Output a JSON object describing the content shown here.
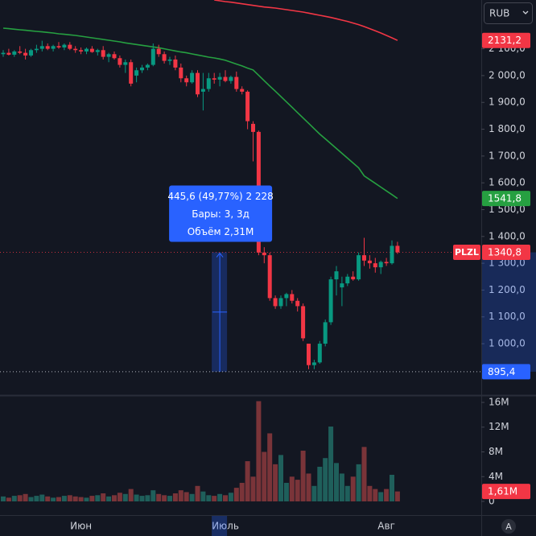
{
  "chart_data": {
    "type": "candlestick",
    "symbol": "PLZL",
    "currency": "RUB",
    "auto_button": "A",
    "categories": [
      null,
      null,
      null,
      null,
      null,
      null,
      null,
      null,
      null,
      null,
      null,
      null,
      null,
      null,
      "Июн",
      null,
      null,
      null,
      null,
      null,
      null,
      null,
      null,
      null,
      null,
      null,
      null,
      null,
      null,
      null,
      null,
      null,
      null,
      null,
      null,
      null,
      null,
      null,
      null,
      null,
      "Июль",
      null,
      null,
      null,
      null,
      null,
      null,
      null,
      null,
      null,
      null,
      null,
      null,
      null,
      null,
      null,
      null,
      null,
      null,
      null,
      null,
      null,
      null,
      null,
      null,
      null,
      null,
      null,
      null,
      "Авг",
      null,
      null
    ],
    "open": [
      2080,
      2085,
      2078,
      2090,
      2085,
      2075,
      2095,
      2100,
      2110,
      2100,
      2110,
      2105,
      2115,
      2100,
      2095,
      2090,
      2100,
      2088,
      2095,
      2070,
      2080,
      2065,
      2040,
      2050,
      2000,
      2020,
      2030,
      2040,
      2100,
      2080,
      2055,
      2060,
      2030,
      1990,
      1975,
      2010,
      1940,
      1950,
      1990,
      1985,
      1995,
      1980,
      1995,
      1950,
      1940,
      1820,
      1790,
      1340,
      1330,
      1170,
      1140,
      1170,
      1185,
      1160,
      1140,
      1000,
      920,
      930,
      1000,
      1080,
      1240,
      1210,
      1225,
      1250,
      1240,
      1330,
      1310,
      1300,
      1285,
      1305,
      1300,
      1365
    ],
    "high": [
      2095,
      2100,
      2095,
      2110,
      2100,
      2100,
      2115,
      2130,
      2120,
      2115,
      2125,
      2120,
      2125,
      2110,
      2105,
      2105,
      2110,
      2100,
      2110,
      2085,
      2090,
      2075,
      2060,
      2060,
      2030,
      2040,
      2045,
      2120,
      2115,
      2090,
      2070,
      2075,
      2045,
      2000,
      2020,
      2020,
      2010,
      2010,
      2010,
      2010,
      2020,
      2000,
      2015,
      1960,
      1945,
      1830,
      1795,
      1360,
      1340,
      1180,
      1180,
      1190,
      1200,
      1170,
      1150,
      1000,
      940,
      1010,
      1090,
      1250,
      1290,
      1250,
      1260,
      1270,
      1340,
      1395,
      1330,
      1320,
      1310,
      1320,
      1385,
      1380
    ],
    "low": [
      2070,
      2075,
      2070,
      2080,
      2060,
      2070,
      2085,
      2090,
      2095,
      2090,
      2100,
      2095,
      2095,
      2085,
      2080,
      2080,
      2085,
      2075,
      2060,
      2050,
      2060,
      2030,
      2010,
      1960,
      1975,
      2010,
      2020,
      2035,
      2070,
      2045,
      2040,
      2020,
      1975,
      1960,
      1970,
      1920,
      1870,
      1940,
      1970,
      1960,
      1975,
      1970,
      1940,
      1930,
      1800,
      1680,
      1330,
      1300,
      1160,
      1130,
      1130,
      1140,
      1150,
      1120,
      1010,
      905,
      905,
      925,
      990,
      1070,
      1180,
      1140,
      1215,
      1235,
      1235,
      1290,
      1280,
      1265,
      1260,
      1290,
      1295,
      1335
    ],
    "close": [
      2085,
      2078,
      2090,
      2085,
      2075,
      2095,
      2100,
      2110,
      2100,
      2110,
      2105,
      2115,
      2100,
      2095,
      2090,
      2100,
      2088,
      2095,
      2070,
      2080,
      2065,
      2040,
      2050,
      1970,
      2020,
      2030,
      2040,
      2100,
      2080,
      2055,
      2060,
      2030,
      1990,
      1975,
      2010,
      1930,
      1950,
      1990,
      1985,
      1995,
      1980,
      1995,
      1950,
      1940,
      1830,
      1790,
      1340,
      1330,
      1170,
      1140,
      1170,
      1185,
      1160,
      1140,
      1020,
      920,
      930,
      1000,
      1080,
      1240,
      1270,
      1225,
      1250,
      1240,
      1330,
      1310,
      1300,
      1285,
      1305,
      1300,
      1365,
      1340.8
    ],
    "volume": [
      0.8,
      0.6,
      0.9,
      1.0,
      1.2,
      0.7,
      0.9,
      1.1,
      0.8,
      0.6,
      0.7,
      0.9,
      1.0,
      0.8,
      0.7,
      0.6,
      0.9,
      1.0,
      1.3,
      0.8,
      1.0,
      1.4,
      1.2,
      2.0,
      1.1,
      0.9,
      1.0,
      1.8,
      1.2,
      1.0,
      0.9,
      1.3,
      1.8,
      1.5,
      1.2,
      2.5,
      1.6,
      1.0,
      0.9,
      1.2,
      1.0,
      1.4,
      2.2,
      3.0,
      6.5,
      4.0,
      16.2,
      8.0,
      11.0,
      6.0,
      7.5,
      3.0,
      4.0,
      3.5,
      8.2,
      4.5,
      2.5,
      5.6,
      7.0,
      12.1,
      6.2,
      4.5,
      2.5,
      4.0,
      6.0,
      8.8,
      2.5,
      2.0,
      1.5,
      2.0,
      4.3,
      1.61
    ],
    "up_color": "#089981",
    "down_color": "#f23645",
    "volume_up_color": "#1f5f5b",
    "volume_down_color": "#7a3439",
    "series": [
      {
        "color": "#f23645",
        "values": [
          null,
          null,
          null,
          null,
          null,
          null,
          null,
          null,
          null,
          null,
          null,
          null,
          null,
          null,
          null,
          null,
          null,
          null,
          null,
          null,
          null,
          null,
          null,
          null,
          null,
          null,
          null,
          null,
          null,
          null,
          null,
          null,
          null,
          null,
          null,
          null,
          null,
          null,
          2282,
          2279,
          2276,
          2274,
          2271,
          2268,
          2265,
          2262,
          2259,
          2256,
          2254,
          2252,
          2249,
          2246,
          2243,
          2240,
          2237,
          2233,
          2229,
          2225,
          2221,
          2217,
          2212,
          2207,
          2202,
          2196,
          2190,
          2183,
          2175,
          2167,
          2159,
          2150,
          2141,
          2131.2
        ],
        "last": {
          "value": 2131.2,
          "label": "2131,2"
        }
      },
      {
        "color": "#26a041",
        "values": [
          2177,
          2175,
          2173,
          2171,
          2169,
          2167,
          2165,
          2163,
          2161,
          2159,
          2156,
          2154,
          2152,
          2150,
          2147,
          2144,
          2141,
          2138,
          2135,
          2132,
          2129,
          2126,
          2122,
          2119,
          2116,
          2113,
          2110,
          2107,
          2104,
          2100,
          2096,
          2092,
          2088,
          2085,
          2081,
          2077,
          2073,
          2069,
          2066,
          2062,
          2057,
          2050,
          2043,
          2036,
          2028,
          2021,
          2001,
          1981,
          1961,
          1942,
          1922,
          1902,
          1882,
          1862,
          1842,
          1822,
          1802,
          1782,
          1764,
          1746,
          1728,
          1710,
          1692,
          1674,
          1656,
          1626,
          1612,
          1598,
          1584,
          1570,
          1556,
          1541.8
        ],
        "last": {
          "value": 1541.8,
          "label": "1541,8"
        }
      }
    ],
    "last_price": {
      "value": 1340.8,
      "label": "1340,8"
    },
    "last_volume": {
      "value": 1.61,
      "label": "1,61M"
    },
    "measure": {
      "low": {
        "value": 895.4,
        "label": "895,4"
      },
      "high": 1340.8,
      "lines": [
        "445,6 (49,77%) 2 228",
        "Бары: 3, 3д",
        "Объём 2,31M"
      ]
    },
    "ylim": [
      811,
      2282
    ],
    "yticks": [
      {
        "value": 1000,
        "label": "1 000,0"
      },
      {
        "value": 1100,
        "label": "1 100,0"
      },
      {
        "value": 1200,
        "label": "1 200,0"
      },
      {
        "value": 1300,
        "label": "1 300,0"
      },
      {
        "value": 1400,
        "label": "1 400,0"
      },
      {
        "value": 1500,
        "label": "1 500,0"
      },
      {
        "value": 1600,
        "label": "1 600,0"
      },
      {
        "value": 1700,
        "label": "1 700,0"
      },
      {
        "value": 1800,
        "label": "1 800,0"
      },
      {
        "value": 1900,
        "label": "1 900,0"
      },
      {
        "value": 2000,
        "label": "2 000,0"
      },
      {
        "value": 2100,
        "label": "2 100,0"
      }
    ],
    "volume_ylim": [
      -2.21,
      17.04
    ],
    "volume_yticks": [
      0,
      {
        "value": 4,
        "label": "4M"
      },
      {
        "value": 8,
        "label": "8M"
      },
      {
        "value": 12,
        "label": "12M"
      },
      {
        "value": 16,
        "label": "16M"
      }
    ]
  }
}
